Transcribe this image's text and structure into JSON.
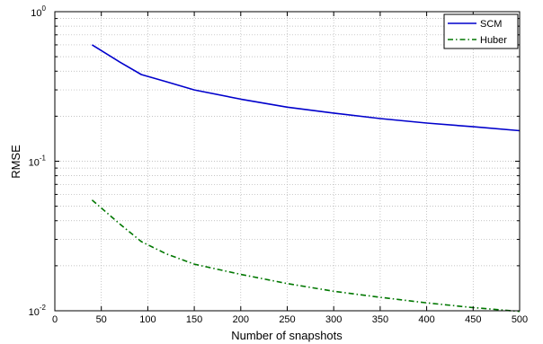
{
  "chart_data": {
    "type": "line",
    "title": "",
    "xlabel": "Number of snapshots",
    "ylabel": "RMSE",
    "xlim": [
      0,
      500
    ],
    "ylim": [
      0.01,
      1
    ],
    "yscale": "log",
    "grid": true,
    "legend_position": "top-right",
    "x_ticks": [
      "0",
      "50",
      "100",
      "150",
      "200",
      "250",
      "300",
      "350",
      "400",
      "450",
      "500"
    ],
    "y_ticks": [
      {
        "base": "10",
        "exp": "-2"
      },
      {
        "base": "10",
        "exp": "-1"
      },
      {
        "base": "10",
        "exp": "0"
      }
    ],
    "series": [
      {
        "name": "SCM",
        "color": "#0000cc",
        "style": "solid",
        "x": [
          40,
          70,
          93,
          120,
          150,
          200,
          250,
          300,
          350,
          400,
          450,
          500
        ],
        "values": [
          0.6,
          0.46,
          0.38,
          0.34,
          0.3,
          0.26,
          0.23,
          0.21,
          0.193,
          0.18,
          0.17,
          0.16
        ]
      },
      {
        "name": "Huber",
        "color": "#007700",
        "style": "dashdot",
        "x": [
          40,
          70,
          93,
          120,
          150,
          200,
          250,
          300,
          350,
          400,
          450,
          500
        ],
        "values": [
          0.055,
          0.038,
          0.029,
          0.024,
          0.0205,
          0.0175,
          0.0152,
          0.0135,
          0.0123,
          0.0113,
          0.0105,
          0.0099
        ]
      }
    ]
  }
}
